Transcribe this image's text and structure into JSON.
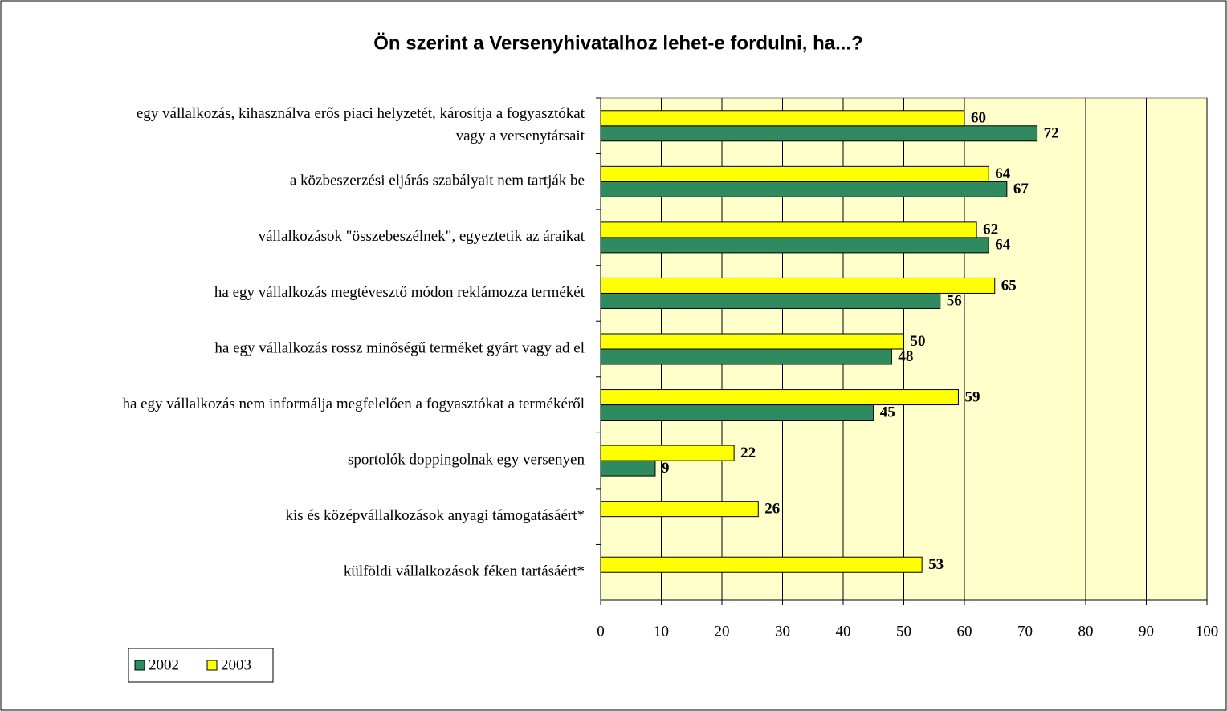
{
  "chart_data": {
    "type": "bar",
    "orientation": "horizontal",
    "title": "Ön szerint a Versenyhivatalhoz lehet-e fordulni, ha...?",
    "categories": [
      "egy vállalkozás, kihasználva erős piaci helyzetét, károsítja a fogyasztókat\nvagy a versenytársait",
      "a közbeszerzési eljárás szabályait nem tartják be",
      "vállalkozások \"összebeszélnek\", egyeztetik az áraikat",
      "ha egy vállalkozás megtévesztő módon reklámozza termékét",
      "ha egy vállalkozás rossz minőségű terméket gyárt vagy ad el",
      "ha egy vállalkozás nem informálja megfelelően a fogyasztókat a termékéről",
      "sportolók doppingolnak egy versenyen",
      "kis és középvállalkozások anyagi támogatásáért*",
      "külföldi vállalkozások féken tartásáért*"
    ],
    "series": [
      {
        "name": "2002",
        "color": "#2f8a5f",
        "values": [
          72,
          67,
          64,
          56,
          48,
          45,
          9,
          null,
          null
        ]
      },
      {
        "name": "2003",
        "color": "#ffff00",
        "values": [
          60,
          64,
          62,
          65,
          50,
          59,
          22,
          26,
          53
        ]
      }
    ],
    "xlim": [
      0,
      100
    ],
    "xticks": [
      0,
      10,
      20,
      30,
      40,
      50,
      60,
      70,
      80,
      90,
      100
    ],
    "grid": true,
    "legend": "bottom-left",
    "plot_background": "#ffffcc"
  }
}
